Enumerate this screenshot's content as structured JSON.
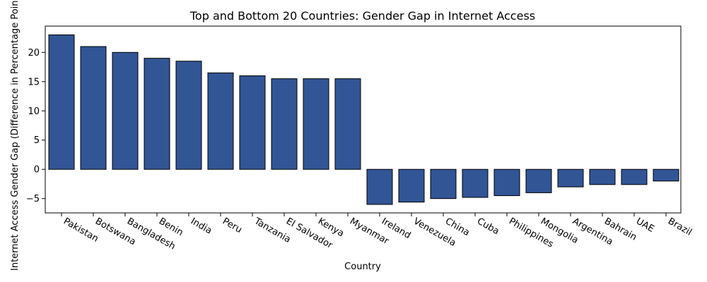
{
  "chart_data": {
    "type": "bar",
    "title": "Top and Bottom 20 Countries: Gender Gap in Internet Access",
    "xlabel": "Country",
    "ylabel": "Internet Access Gender Gap (Difference in Percentage Points)",
    "categories": [
      "Pakistan",
      "Botswana",
      "Bangladesh",
      "Benin",
      "India",
      "Peru",
      "Tanzania",
      "El Salvador",
      "Kenya",
      "Myanmar",
      "Ireland",
      "Venezuela",
      "China",
      "Cuba",
      "Philippines",
      "Mongolia",
      "Argentina",
      "Bahrain",
      "UAE",
      "Brazil"
    ],
    "values": [
      23,
      21,
      20,
      19,
      18.5,
      16.5,
      16,
      15.5,
      15.5,
      15.5,
      -6,
      -5.6,
      -5,
      -4.8,
      -4.5,
      -4,
      -3,
      -2.6,
      -2.6,
      -2
    ],
    "ylim": [
      -7.45,
      24.5
    ],
    "yticks": [
      -5,
      0,
      5,
      10,
      15,
      20
    ],
    "bar_color": "#325596",
    "edge_color": "#000000",
    "grid": false,
    "legend": "none"
  }
}
